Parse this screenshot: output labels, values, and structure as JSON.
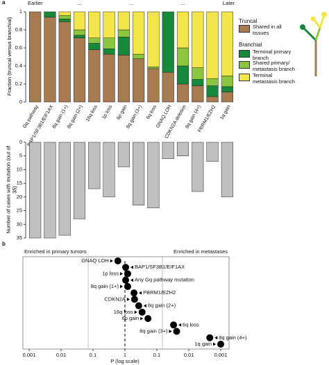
{
  "panel_a_label": "a",
  "panel_b_label": "b",
  "chart_data": [
    {
      "type": "stacked-bar",
      "timeline": [
        "Earlier",
        "...",
        "...",
        "...",
        "Later"
      ],
      "y_label": "Fraction (truncal versus branchial)",
      "legend_groups": [
        "Truncal",
        "Branchial"
      ],
      "categories": [
        "Gq pathway",
        "BAP1/SF3B1/EIF1AX",
        "8q gain (1+)",
        "8q gain (2+)",
        "16q loss",
        "1p loss",
        "6p gain",
        "8q gain (3+)",
        "6q loss",
        "GNAQ LOH",
        "CDKN2A deletion",
        "8q gain (4+)",
        "PBRM1/EZH2",
        "1q gain"
      ],
      "series": [
        {
          "name": "Shared in all tissues",
          "color": "#a57b4f",
          "values": [
            1,
            0.94,
            0.89,
            0.71,
            0.58,
            0.53,
            0.52,
            0.48,
            0.37,
            0.33,
            0.2,
            0.18,
            0.06,
            0.11
          ]
        },
        {
          "name": "Terminal primary branch",
          "color": "#17893a",
          "values": [
            0,
            0.06,
            0.03,
            0.03,
            0.07,
            0.06,
            0.2,
            0,
            0,
            0.67,
            0.2,
            0.07,
            0.12,
            0.06
          ]
        },
        {
          "name": "Shared primary/ metastasis branch",
          "color": "#8cc63f",
          "values": [
            0,
            0,
            0.04,
            0.06,
            0.06,
            0.12,
            0.08,
            0.05,
            0.02,
            0,
            0.2,
            0.13,
            0.08,
            0.12
          ]
        },
        {
          "name": "Terminal metastasis branch",
          "color": "#f4e54b",
          "values": [
            0,
            0,
            0.04,
            0.2,
            0.29,
            0.29,
            0.2,
            0.47,
            0.61,
            0,
            0.4,
            0.62,
            0.74,
            0.71
          ]
        }
      ],
      "ylim": [
        0,
        1
      ],
      "yticks": [
        0,
        0.2,
        0.4,
        0.6,
        0.8,
        1
      ]
    },
    {
      "type": "bar",
      "y_label": "Number of cases with mutation (out of 35)",
      "values": [
        35,
        35,
        34,
        28,
        17,
        20,
        9,
        23,
        24,
        6,
        5,
        18,
        7,
        20
      ],
      "color": "#c0c0c0",
      "inverted": true,
      "ylim": [
        0,
        35
      ],
      "yticks": [
        0,
        5,
        10,
        15,
        20,
        25,
        30,
        35
      ]
    },
    {
      "type": "dot",
      "left_label": "Enriched in primary tumors",
      "right_label": "Enriched in metastases",
      "x_label": "P (log scale)",
      "log_scale": true,
      "xlim_left": [
        0.001,
        1
      ],
      "xticks_left": [
        0.001,
        0.01,
        0.1,
        1
      ],
      "xlim_right": [
        1,
        0.001
      ],
      "xticks_right": [
        0.1,
        0.01,
        0.001
      ],
      "points": [
        {
          "label": "GNAQ LOH",
          "p": 0.6,
          "side": "primary",
          "label_side": "left"
        },
        {
          "label": "BAP1/SF3B1/EIF1AX",
          "p": 0.95,
          "side": "metastasis",
          "label_side": "right"
        },
        {
          "label": "1p loss",
          "p": 0.82,
          "side": "metastasis",
          "label_side": "left"
        },
        {
          "label": "Any Gq pathway mutation",
          "p": 0.95,
          "side": "metastasis",
          "label_side": "right"
        },
        {
          "label": "8q gain (1+)",
          "p": 0.82,
          "side": "metastasis",
          "label_side": "left"
        },
        {
          "label": "PBRM1/EZH2",
          "p": 0.52,
          "side": "metastasis",
          "label_side": "right"
        },
        {
          "label": "CDKN2A",
          "p": 0.5,
          "side": "metastasis",
          "label_side": "left"
        },
        {
          "label": "8q gain (2+)",
          "p": 0.37,
          "side": "metastasis",
          "label_side": "right"
        },
        {
          "label": "16q loss",
          "p": 0.29,
          "side": "metastasis",
          "label_side": "left"
        },
        {
          "label": "6p gain",
          "p": 0.19,
          "side": "metastasis",
          "label_side": "left"
        },
        {
          "label": "6q loss",
          "p": 0.03,
          "side": "metastasis",
          "label_side": "right"
        },
        {
          "label": "8q gain (3+)",
          "p": 0.024,
          "side": "metastasis",
          "label_side": "left"
        },
        {
          "label": "8q gain (4+)",
          "p": 0.0022,
          "side": "metastasis",
          "label_side": "right"
        },
        {
          "label": "1q gain",
          "p": 0.001,
          "side": "metastasis",
          "label_side": "left"
        }
      ]
    }
  ]
}
